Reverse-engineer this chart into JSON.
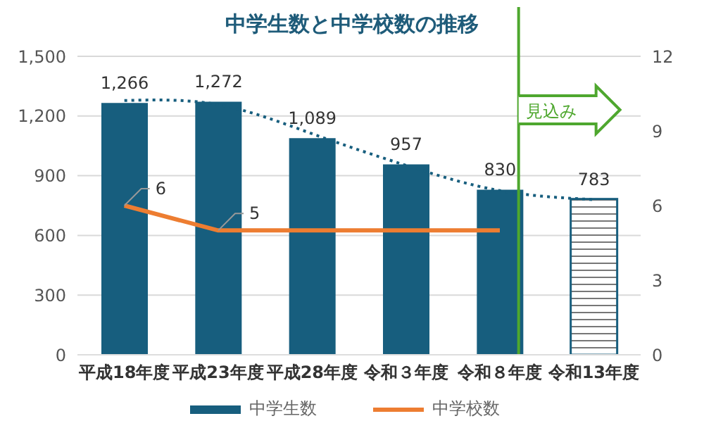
{
  "chart_data": {
    "type": "bar",
    "title": "中学生数と中学校数の推移",
    "categories": [
      "平成18年度",
      "平成23年度",
      "平成28年度",
      "令和３年度",
      "令和８年度",
      "令和13年度"
    ],
    "series": [
      {
        "name": "中学生数",
        "color": "#175e7e",
        "colors": [
          "#175e7e",
          "#175e7e",
          "#175e7e",
          "#175e7e",
          "#175e7e",
          "#ffffff"
        ],
        "values": [
          1266,
          1272,
          1089,
          957,
          830,
          783
        ],
        "value_labels": [
          "1,266",
          "1,272",
          "1,089",
          "957",
          "830",
          "783"
        ]
      },
      {
        "type": "line",
        "color": "#175e7e",
        "line_style": "dotted",
        "values": [
          1278,
          1257,
          1111,
          952,
          825,
          780
        ]
      },
      {
        "name": "中学校数",
        "type": "line",
        "axis": "y2",
        "color": "#ed7d31",
        "line_style": "solid",
        "values": [
          6,
          5,
          5,
          5,
          5,
          null
        ],
        "value_labels": [
          "6",
          "5",
          null,
          null,
          null,
          null
        ]
      }
    ],
    "ylim": [
      0,
      1500
    ],
    "yticks": [
      0,
      300,
      600,
      900,
      {
        "value": 1200,
        "label": "1,200"
      },
      {
        "value": 1500,
        "label": "1,500"
      }
    ],
    "y2lim": [
      0,
      12
    ],
    "y2ticks": [
      0,
      3,
      6,
      9,
      12
    ],
    "ref_lines": [
      {
        "axis": "x",
        "value": "令和８年度",
        "label": "見込み",
        "color": "#4ea72e"
      }
    ],
    "grid": "y",
    "legend": "bottom",
    "marker": "none"
  }
}
